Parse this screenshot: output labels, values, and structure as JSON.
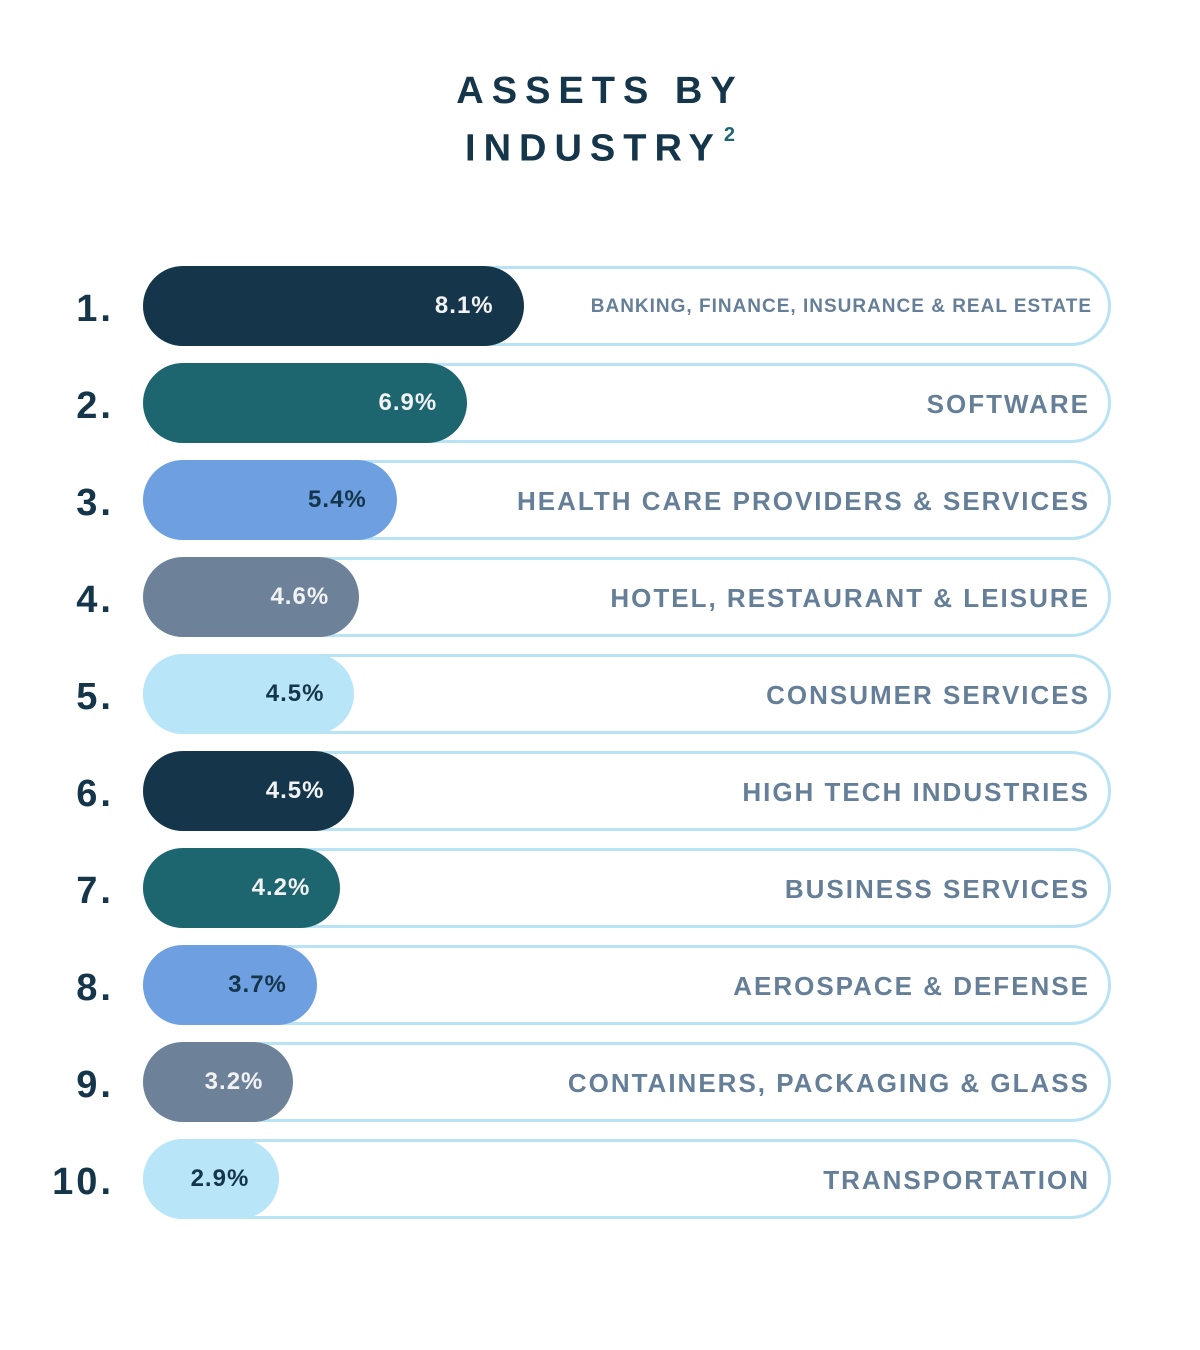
{
  "title": {
    "line1": "ASSETS BY",
    "line2": "INDUSTRY",
    "superscript": "2"
  },
  "colors": {
    "navy": "#14354a",
    "teal": "#1d6670",
    "blue": "#6d9fe1",
    "slate": "#6d8299",
    "sky": "#b8e6f8",
    "label": "#667f98",
    "track_border": "#b8e3f5"
  },
  "chart_data": {
    "type": "bar",
    "title": "ASSETS BY INDUSTRY",
    "orientation": "horizontal",
    "unit": "%",
    "xlim": [
      0,
      20.6
    ],
    "ranks": [
      "1.",
      "2.",
      "3.",
      "4.",
      "5.",
      "6.",
      "7.",
      "8.",
      "9.",
      "10."
    ],
    "categories": [
      "BANKING, FINANCE, INSURANCE & REAL ESTATE",
      "SOFTWARE",
      "HEALTH CARE PROVIDERS & SERVICES",
      "HOTEL, RESTAURANT & LEISURE",
      "CONSUMER SERVICES",
      "HIGH TECH INDUSTRIES",
      "BUSINESS SERVICES",
      "AEROSPACE & DEFENSE",
      "CONTAINERS, PACKAGING & GLASS",
      "TRANSPORTATION"
    ],
    "values": [
      8.1,
      6.9,
      5.4,
      4.6,
      4.5,
      4.5,
      4.2,
      3.7,
      3.2,
      2.9
    ],
    "value_labels": [
      "8.1%",
      "6.9%",
      "5.4%",
      "4.6%",
      "4.5%",
      "4.5%",
      "4.2%",
      "3.7%",
      "3.2%",
      "2.9%"
    ],
    "bar_colors": [
      "#14354a",
      "#1d6670",
      "#6d9fe1",
      "#6d8299",
      "#b8e6f8",
      "#14354a",
      "#1d6670",
      "#6d9fe1",
      "#6d8299",
      "#b8e6f8"
    ],
    "value_text_colors": [
      "#f2f2f2",
      "#f2f2f2",
      "#14354a",
      "#f2f2f2",
      "#14354a",
      "#f2f2f2",
      "#f2f2f2",
      "#14354a",
      "#f2f2f2",
      "#14354a"
    ]
  }
}
